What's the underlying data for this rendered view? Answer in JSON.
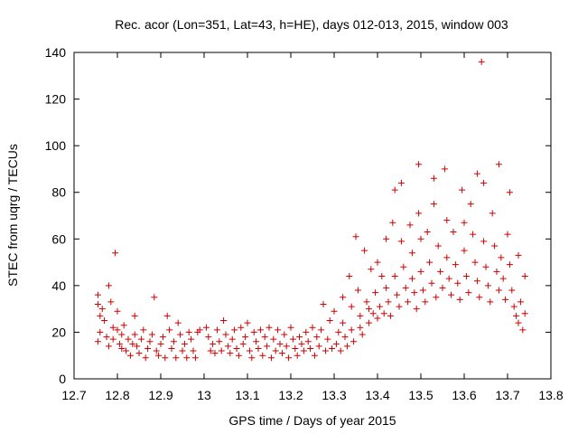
{
  "chart_data": {
    "type": "scatter",
    "title": "Rec. acor (Lon=351, Lat=43, h=HE), days 012-013, 2015, window 003",
    "xlabel": "GPS time / Days of year 2015",
    "ylabel": "STEC from uqrg / TECUs",
    "xlim": [
      12.7,
      13.8
    ],
    "ylim": [
      0,
      140
    ],
    "xticks": [
      "12.7",
      "12.8",
      "12.9",
      "13",
      "13.1",
      "13.2",
      "13.3",
      "13.4",
      "13.5",
      "13.6",
      "13.7",
      "13.8"
    ],
    "yticks": [
      "0",
      "20",
      "40",
      "60",
      "80",
      "100",
      "120",
      "140"
    ],
    "grid": false,
    "legend": "none",
    "marker": "+",
    "color": "#cc0000",
    "series": [
      {
        "points": [
          [
            12.755,
            36
          ],
          [
            12.755,
            32
          ],
          [
            12.76,
            27
          ],
          [
            12.76,
            20
          ],
          [
            12.755,
            16
          ],
          [
            12.765,
            30
          ],
          [
            12.77,
            25
          ],
          [
            12.775,
            18
          ],
          [
            12.78,
            14
          ],
          [
            12.78,
            40
          ],
          [
            12.785,
            33
          ],
          [
            12.79,
            22
          ],
          [
            12.79,
            17
          ],
          [
            12.795,
            54
          ],
          [
            12.8,
            29
          ],
          [
            12.8,
            21
          ],
          [
            12.805,
            15
          ],
          [
            12.81,
            13
          ],
          [
            12.81,
            19
          ],
          [
            12.815,
            23
          ],
          [
            12.82,
            12
          ],
          [
            12.825,
            17
          ],
          [
            12.83,
            10
          ],
          [
            12.835,
            15
          ],
          [
            12.84,
            27
          ],
          [
            12.84,
            19
          ],
          [
            12.845,
            14
          ],
          [
            12.85,
            11
          ],
          [
            12.855,
            17
          ],
          [
            12.86,
            21
          ],
          [
            12.865,
            9
          ],
          [
            12.87,
            13
          ],
          [
            12.875,
            16
          ],
          [
            12.88,
            19
          ],
          [
            12.885,
            35
          ],
          [
            12.89,
            12
          ],
          [
            12.895,
            10
          ],
          [
            12.9,
            15
          ],
          [
            12.905,
            18
          ],
          [
            12.91,
            9
          ],
          [
            12.915,
            27
          ],
          [
            12.92,
            21
          ],
          [
            12.925,
            13
          ],
          [
            12.93,
            16
          ],
          [
            12.935,
            9
          ],
          [
            12.94,
            24
          ],
          [
            12.945,
            19
          ],
          [
            12.95,
            12
          ],
          [
            12.955,
            15
          ],
          [
            12.96,
            9
          ],
          [
            12.965,
            20
          ],
          [
            12.97,
            17
          ],
          [
            12.975,
            12
          ],
          [
            12.98,
            9
          ],
          [
            12.985,
            20
          ],
          [
            12.99,
            21
          ],
          [
            13.005,
            22
          ],
          [
            13.01,
            18
          ],
          [
            13.015,
            12
          ],
          [
            13.02,
            15
          ],
          [
            13.025,
            11
          ],
          [
            13.03,
            21
          ],
          [
            13.035,
            16
          ],
          [
            13.04,
            12
          ],
          [
            13.045,
            25
          ],
          [
            13.05,
            19
          ],
          [
            13.055,
            14
          ],
          [
            13.06,
            11
          ],
          [
            13.065,
            17
          ],
          [
            13.07,
            21
          ],
          [
            13.075,
            13
          ],
          [
            13.08,
            10
          ],
          [
            13.085,
            22
          ],
          [
            13.09,
            15
          ],
          [
            13.095,
            18
          ],
          [
            13.1,
            24
          ],
          [
            13.105,
            12
          ],
          [
            13.11,
            9
          ],
          [
            13.115,
            20
          ],
          [
            13.12,
            16
          ],
          [
            13.125,
            13
          ],
          [
            13.13,
            21
          ],
          [
            13.135,
            10
          ],
          [
            13.14,
            18
          ],
          [
            13.145,
            14
          ],
          [
            13.15,
            22
          ],
          [
            13.155,
            9
          ],
          [
            13.16,
            17
          ],
          [
            13.165,
            12
          ],
          [
            13.17,
            21
          ],
          [
            13.175,
            15
          ],
          [
            13.18,
            11
          ],
          [
            13.185,
            19
          ],
          [
            13.19,
            14
          ],
          [
            13.195,
            9
          ],
          [
            13.2,
            22
          ],
          [
            13.205,
            17
          ],
          [
            13.21,
            13
          ],
          [
            13.215,
            10
          ],
          [
            13.22,
            18
          ],
          [
            13.225,
            15
          ],
          [
            13.23,
            12
          ],
          [
            13.235,
            20
          ],
          [
            13.24,
            16
          ],
          [
            13.245,
            13
          ],
          [
            13.25,
            22
          ],
          [
            13.255,
            10
          ],
          [
            13.26,
            18
          ],
          [
            13.265,
            14
          ],
          [
            13.27,
            21
          ],
          [
            13.275,
            32
          ],
          [
            13.28,
            12
          ],
          [
            13.285,
            17
          ],
          [
            13.29,
            25
          ],
          [
            13.295,
            13
          ],
          [
            13.3,
            29
          ],
          [
            13.305,
            15
          ],
          [
            13.31,
            20
          ],
          [
            13.315,
            12
          ],
          [
            13.32,
            35
          ],
          [
            13.32,
            24
          ],
          [
            13.325,
            18
          ],
          [
            13.33,
            14
          ],
          [
            13.335,
            44
          ],
          [
            13.34,
            31
          ],
          [
            13.34,
            21
          ],
          [
            13.345,
            16
          ],
          [
            13.35,
            61
          ],
          [
            13.355,
            38
          ],
          [
            13.36,
            27
          ],
          [
            13.36,
            22
          ],
          [
            13.365,
            19
          ],
          [
            13.37,
            55
          ],
          [
            13.375,
            33
          ],
          [
            13.38,
            30
          ],
          [
            13.38,
            24
          ],
          [
            13.385,
            47
          ],
          [
            13.39,
            28
          ],
          [
            13.395,
            37
          ],
          [
            13.4,
            26
          ],
          [
            13.4,
            50
          ],
          [
            13.405,
            31
          ],
          [
            13.41,
            44
          ],
          [
            13.415,
            28
          ],
          [
            13.42,
            60
          ],
          [
            13.42,
            39
          ],
          [
            13.425,
            33
          ],
          [
            13.43,
            27
          ],
          [
            13.435,
            67
          ],
          [
            13.44,
            81
          ],
          [
            13.44,
            44
          ],
          [
            13.445,
            36
          ],
          [
            13.45,
            31
          ],
          [
            13.455,
            84
          ],
          [
            13.455,
            59
          ],
          [
            13.46,
            48
          ],
          [
            13.465,
            39
          ],
          [
            13.47,
            33
          ],
          [
            13.475,
            66
          ],
          [
            13.48,
            54
          ],
          [
            13.48,
            43
          ],
          [
            13.485,
            37
          ],
          [
            13.49,
            30
          ],
          [
            13.495,
            92
          ],
          [
            13.495,
            71
          ],
          [
            13.5,
            60
          ],
          [
            13.5,
            46
          ],
          [
            13.505,
            38
          ],
          [
            13.51,
            33
          ],
          [
            13.515,
            63
          ],
          [
            13.52,
            50
          ],
          [
            13.525,
            41
          ],
          [
            13.53,
            86
          ],
          [
            13.53,
            75
          ],
          [
            13.535,
            35
          ],
          [
            13.54,
            57
          ],
          [
            13.545,
            46
          ],
          [
            13.55,
            39
          ],
          [
            13.555,
            90
          ],
          [
            13.56,
            68
          ],
          [
            13.56,
            52
          ],
          [
            13.565,
            43
          ],
          [
            13.57,
            36
          ],
          [
            13.575,
            63
          ],
          [
            13.58,
            49
          ],
          [
            13.585,
            41
          ],
          [
            13.59,
            34
          ],
          [
            13.595,
            81
          ],
          [
            13.6,
            67
          ],
          [
            13.6,
            55
          ],
          [
            13.605,
            44
          ],
          [
            13.61,
            37
          ],
          [
            13.615,
            75
          ],
          [
            13.62,
            62
          ],
          [
            13.625,
            50
          ],
          [
            13.63,
            88
          ],
          [
            13.63,
            42
          ],
          [
            13.635,
            35
          ],
          [
            13.64,
            136
          ],
          [
            13.645,
            84
          ],
          [
            13.645,
            59
          ],
          [
            13.65,
            48
          ],
          [
            13.655,
            40
          ],
          [
            13.66,
            33
          ],
          [
            13.665,
            71
          ],
          [
            13.67,
            57
          ],
          [
            13.675,
            46
          ],
          [
            13.68,
            92
          ],
          [
            13.68,
            38
          ],
          [
            13.685,
            52
          ],
          [
            13.69,
            43
          ],
          [
            13.695,
            34
          ],
          [
            13.7,
            62
          ],
          [
            13.705,
            80
          ],
          [
            13.705,
            49
          ],
          [
            13.71,
            38
          ],
          [
            13.715,
            31
          ],
          [
            13.72,
            27
          ],
          [
            13.725,
            53
          ],
          [
            13.725,
            24
          ],
          [
            13.73,
            33
          ],
          [
            13.735,
            21
          ],
          [
            13.74,
            44
          ],
          [
            13.74,
            28
          ]
        ]
      }
    ]
  }
}
